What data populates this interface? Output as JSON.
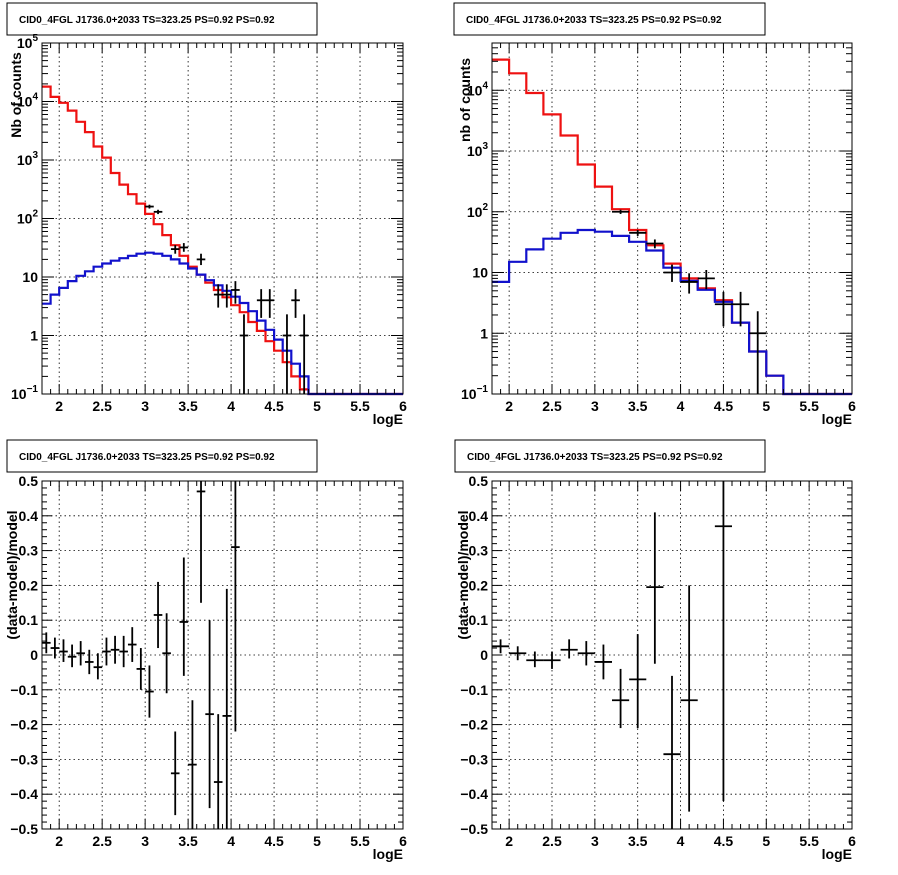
{
  "chart_data": [
    {
      "id": "p1",
      "type": "line",
      "title": "CID0_4FGL J1736.0+2033 TS=323.25 PS=0.92 PS=0.92",
      "xlabel": "logE",
      "ylabel": "Nb of counts",
      "xlim": [
        1.8,
        6.0
      ],
      "ylim": [
        0.1,
        100000
      ],
      "yscale": "log",
      "grid": true,
      "xticks": [
        "2",
        "2.5",
        "3",
        "3.5",
        "4",
        "4.5",
        "5",
        "5.5",
        "6"
      ],
      "yticks": [
        {
          "value": 0.1,
          "label": "10",
          "exp": "−1"
        },
        {
          "value": 1,
          "label": "1",
          "exp": ""
        },
        {
          "value": 10,
          "label": "10",
          "exp": ""
        },
        {
          "value": 100,
          "label": "10",
          "exp": "2"
        },
        {
          "value": 1000,
          "label": "10",
          "exp": "3"
        },
        {
          "value": 10000,
          "label": "10",
          "exp": "4"
        },
        {
          "value": 100000,
          "label": "10",
          "exp": "5"
        }
      ],
      "bin_edges": [
        1.8,
        1.9,
        2.0,
        2.1,
        2.2,
        2.3,
        2.4,
        2.5,
        2.6,
        2.7,
        2.8,
        2.9,
        3.0,
        3.1,
        3.2,
        3.3,
        3.4,
        3.5,
        3.6,
        3.7,
        3.8,
        3.9,
        4.0,
        4.1,
        4.2,
        4.3,
        4.4,
        4.5,
        4.6,
        4.7,
        4.8,
        4.9,
        5.0,
        5.1,
        5.2,
        5.3,
        5.4,
        5.5,
        5.6,
        5.7,
        5.8,
        5.9,
        6.0
      ],
      "series": [
        {
          "role": "total model",
          "color": "#ee1111",
          "values": [
            18000,
            12000,
            9500,
            7000,
            4500,
            3000,
            1700,
            1100,
            600,
            380,
            260,
            180,
            120,
            80,
            52,
            35,
            23,
            15,
            11,
            8,
            6,
            4.5,
            3.3,
            2.5,
            1.7,
            1.2,
            0.8,
            0.55,
            0.35,
            0.2,
            0.12,
            0.05,
            0.02,
            0.1,
            0.1,
            0.1,
            0.1,
            0.1,
            0.1,
            0.1,
            0.1,
            0.1
          ]
        },
        {
          "role": "source model",
          "color": "#1111cc",
          "values": [
            3.5,
            5,
            6.5,
            8.5,
            10.5,
            12.5,
            15,
            17,
            19,
            21,
            23,
            25,
            26,
            25,
            23,
            20,
            17,
            14,
            11,
            8.8,
            7.2,
            5.8,
            4.6,
            3.6,
            2.6,
            1.8,
            1.25,
            0.85,
            0.55,
            0.33,
            0.2,
            0.1,
            0.1,
            0.1,
            0.1,
            0.1,
            0.1,
            0.1,
            0.1,
            0.1,
            0.1,
            0.1
          ]
        }
      ],
      "points": [
        {
          "x": 3.05,
          "y": 160,
          "xerr": 0.05,
          "ylo": 148,
          "yhi": 172
        },
        {
          "x": 3.15,
          "y": 130,
          "xerr": 0.05,
          "ylo": 119,
          "yhi": 141
        },
        {
          "x": 3.35,
          "y": 30,
          "xerr": 0.05,
          "ylo": 25,
          "yhi": 35
        },
        {
          "x": 3.45,
          "y": 32,
          "xerr": 0.05,
          "ylo": 27,
          "yhi": 38
        },
        {
          "x": 3.65,
          "y": 20,
          "xerr": 0.05,
          "ylo": 16,
          "yhi": 25
        },
        {
          "x": 3.85,
          "y": 5,
          "xerr": 0.05,
          "ylo": 3,
          "yhi": 7.5
        },
        {
          "x": 3.95,
          "y": 5,
          "xerr": 0.05,
          "ylo": 3,
          "yhi": 7.5
        },
        {
          "x": 4.05,
          "y": 6,
          "xerr": 0.05,
          "ylo": 3.5,
          "yhi": 8.5
        },
        {
          "x": 4.15,
          "y": 1,
          "xerr": 0.05,
          "ylo": 0.1,
          "yhi": 2.3
        },
        {
          "x": 4.35,
          "y": 4,
          "xerr": 0.05,
          "ylo": 2,
          "yhi": 6.2
        },
        {
          "x": 4.45,
          "y": 4,
          "xerr": 0.05,
          "ylo": 2,
          "yhi": 6.2
        },
        {
          "x": 4.65,
          "y": 1,
          "xerr": 0.05,
          "ylo": 0.1,
          "yhi": 2.3
        },
        {
          "x": 4.75,
          "y": 4,
          "xerr": 0.05,
          "ylo": 2,
          "yhi": 6.2
        },
        {
          "x": 4.85,
          "y": 1,
          "xerr": 0.05,
          "ylo": 0.1,
          "yhi": 2.3
        }
      ]
    },
    {
      "id": "p2",
      "type": "line",
      "title": "CID0_4FGL J1736.0+2033 TS=323.25 PS=0.92 PS=0.92",
      "xlabel": "logE",
      "ylabel": "nb of counts",
      "xlim": [
        1.8,
        6.0
      ],
      "ylim": [
        0.1,
        60000
      ],
      "yscale": "log",
      "grid": true,
      "xticks": [
        "2",
        "2.5",
        "3",
        "3.5",
        "4",
        "4.5",
        "5",
        "5.5",
        "6"
      ],
      "yticks": [
        {
          "value": 0.1,
          "label": "10",
          "exp": "−1"
        },
        {
          "value": 1,
          "label": "1",
          "exp": ""
        },
        {
          "value": 10,
          "label": "10",
          "exp": ""
        },
        {
          "value": 100,
          "label": "10",
          "exp": "2"
        },
        {
          "value": 1000,
          "label": "10",
          "exp": "3"
        },
        {
          "value": 10000,
          "label": "10",
          "exp": "4"
        }
      ],
      "bin_edges": [
        1.8,
        2.0,
        2.2,
        2.4,
        2.6,
        2.8,
        3.0,
        3.2,
        3.4,
        3.6,
        3.8,
        4.0,
        4.2,
        4.4,
        4.6,
        4.8,
        5.0,
        5.2,
        5.4,
        5.6,
        5.8,
        6.0
      ],
      "series": [
        {
          "role": "total model",
          "color": "#ee1111",
          "values": [
            32000,
            19000,
            9000,
            4000,
            1800,
            600,
            260,
            110,
            50,
            28,
            14,
            8,
            5.5,
            3.5,
            1.5,
            0.5,
            0.2,
            0.1,
            0.1,
            0.1,
            0.1
          ]
        },
        {
          "role": "source model",
          "color": "#1111cc",
          "values": [
            7,
            15,
            24,
            36,
            45,
            50,
            47,
            40,
            32,
            23,
            12,
            7.3,
            5.2,
            3.3,
            1.5,
            0.5,
            0.2,
            0.1,
            0.1,
            0.1,
            0.1
          ]
        }
      ],
      "points": [
        {
          "x": 3.3,
          "y": 100,
          "xerr": 0.1,
          "ylo": 92,
          "yhi": 108
        },
        {
          "x": 3.5,
          "y": 45,
          "xerr": 0.1,
          "ylo": 40,
          "yhi": 50
        },
        {
          "x": 3.7,
          "y": 30,
          "xerr": 0.1,
          "ylo": 25,
          "yhi": 35
        },
        {
          "x": 3.9,
          "y": 10,
          "xerr": 0.1,
          "ylo": 7,
          "yhi": 13.5
        },
        {
          "x": 4.1,
          "y": 7,
          "xerr": 0.1,
          "ylo": 4.5,
          "yhi": 9.7
        },
        {
          "x": 4.3,
          "y": 8,
          "xerr": 0.1,
          "ylo": 5.3,
          "yhi": 11
        },
        {
          "x": 4.5,
          "y": 3,
          "xerr": 0.1,
          "ylo": 1.3,
          "yhi": 4.8
        },
        {
          "x": 4.7,
          "y": 3,
          "xerr": 0.1,
          "ylo": 1.3,
          "yhi": 4.8
        },
        {
          "x": 4.9,
          "y": 1,
          "xerr": 0.1,
          "ylo": 0.1,
          "yhi": 2.3
        }
      ]
    },
    {
      "id": "p3",
      "type": "scatter",
      "title": "CID0_4FGL J1736.0+2033 TS=323.25 PS=0.92 PS=0.92",
      "xlabel": "logE",
      "ylabel": "(data-model)/model",
      "xlim": [
        1.8,
        6.0
      ],
      "ylim": [
        -0.5,
        0.5
      ],
      "yscale": "linear",
      "grid": true,
      "xticks": [
        "2",
        "2.5",
        "3",
        "3.5",
        "4",
        "4.5",
        "5",
        "5.5",
        "6"
      ],
      "yticks": [
        {
          "value": -0.5,
          "label": "−0.5",
          "exp": ""
        },
        {
          "value": -0.4,
          "label": "−0.4",
          "exp": ""
        },
        {
          "value": -0.3,
          "label": "−0.3",
          "exp": ""
        },
        {
          "value": -0.2,
          "label": "−0.2",
          "exp": ""
        },
        {
          "value": -0.1,
          "label": "−0.1",
          "exp": ""
        },
        {
          "value": 0,
          "label": "0",
          "exp": ""
        },
        {
          "value": 0.1,
          "label": "0.1",
          "exp": ""
        },
        {
          "value": 0.2,
          "label": "0.2",
          "exp": ""
        },
        {
          "value": 0.3,
          "label": "0.3",
          "exp": ""
        },
        {
          "value": 0.4,
          "label": "0.4",
          "exp": ""
        },
        {
          "value": 0.5,
          "label": "0.5",
          "exp": ""
        }
      ],
      "points": [
        {
          "x": 1.85,
          "y": 0.035,
          "xerr": 0.05,
          "ylo": 0.005,
          "yhi": 0.065
        },
        {
          "x": 1.95,
          "y": 0.02,
          "xerr": 0.05,
          "ylo": -0.01,
          "yhi": 0.05
        },
        {
          "x": 2.05,
          "y": 0.01,
          "xerr": 0.05,
          "ylo": -0.02,
          "yhi": 0.045
        },
        {
          "x": 2.15,
          "y": -0.005,
          "xerr": 0.05,
          "ylo": -0.035,
          "yhi": 0.03
        },
        {
          "x": 2.25,
          "y": 0.005,
          "xerr": 0.05,
          "ylo": -0.03,
          "yhi": 0.04
        },
        {
          "x": 2.35,
          "y": -0.02,
          "xerr": 0.05,
          "ylo": -0.055,
          "yhi": 0.015
        },
        {
          "x": 2.45,
          "y": -0.035,
          "xerr": 0.05,
          "ylo": -0.07,
          "yhi": 0.005
        },
        {
          "x": 2.55,
          "y": 0.01,
          "xerr": 0.05,
          "ylo": -0.03,
          "yhi": 0.05
        },
        {
          "x": 2.65,
          "y": 0.015,
          "xerr": 0.05,
          "ylo": -0.025,
          "yhi": 0.055
        },
        {
          "x": 2.75,
          "y": 0.01,
          "xerr": 0.05,
          "ylo": -0.035,
          "yhi": 0.055
        },
        {
          "x": 2.85,
          "y": 0.03,
          "xerr": 0.05,
          "ylo": -0.02,
          "yhi": 0.08
        },
        {
          "x": 2.95,
          "y": -0.04,
          "xerr": 0.05,
          "ylo": -0.1,
          "yhi": 0.02
        },
        {
          "x": 3.05,
          "y": -0.105,
          "xerr": 0.05,
          "ylo": -0.18,
          "yhi": -0.03
        },
        {
          "x": 3.15,
          "y": 0.115,
          "xerr": 0.05,
          "ylo": 0.02,
          "yhi": 0.21
        },
        {
          "x": 3.25,
          "y": 0.005,
          "xerr": 0.05,
          "ylo": -0.11,
          "yhi": 0.12
        },
        {
          "x": 3.35,
          "y": -0.34,
          "xerr": 0.05,
          "ylo": -0.46,
          "yhi": -0.22
        },
        {
          "x": 3.45,
          "y": 0.095,
          "xerr": 0.05,
          "ylo": -0.06,
          "yhi": 0.28
        },
        {
          "x": 3.55,
          "y": -0.315,
          "xerr": 0.05,
          "ylo": -0.5,
          "yhi": -0.13
        },
        {
          "x": 3.65,
          "y": 0.47,
          "xerr": 0.05,
          "ylo": 0.15,
          "yhi": 0.5
        },
        {
          "x": 3.75,
          "y": -0.17,
          "xerr": 0.05,
          "ylo": -0.44,
          "yhi": 0.1
        },
        {
          "x": 3.85,
          "y": -0.365,
          "xerr": 0.05,
          "ylo": -0.5,
          "yhi": -0.17
        },
        {
          "x": 3.95,
          "y": -0.175,
          "xerr": 0.05,
          "ylo": -0.5,
          "yhi": 0.19
        },
        {
          "x": 4.05,
          "y": 0.31,
          "xerr": 0.05,
          "ylo": -0.22,
          "yhi": 0.5
        }
      ]
    },
    {
      "id": "p4",
      "type": "scatter",
      "title": "CID0_4FGL J1736.0+2033 TS=323.25 PS=0.92 PS=0.92",
      "xlabel": "logE",
      "ylabel": "(data-model)/model",
      "xlim": [
        1.8,
        6.0
      ],
      "ylim": [
        -0.5,
        0.5
      ],
      "yscale": "linear",
      "grid": true,
      "xticks": [
        "2",
        "2.5",
        "3",
        "3.5",
        "4",
        "4.5",
        "5",
        "5.5",
        "6"
      ],
      "yticks": [
        {
          "value": -0.5,
          "label": "−0.5",
          "exp": ""
        },
        {
          "value": -0.4,
          "label": "−0.4",
          "exp": ""
        },
        {
          "value": -0.3,
          "label": "−0.3",
          "exp": ""
        },
        {
          "value": -0.2,
          "label": "−0.2",
          "exp": ""
        },
        {
          "value": -0.1,
          "label": "−0.1",
          "exp": ""
        },
        {
          "value": 0,
          "label": "0",
          "exp": ""
        },
        {
          "value": 0.1,
          "label": "0.1",
          "exp": ""
        },
        {
          "value": 0.2,
          "label": "0.2",
          "exp": ""
        },
        {
          "value": 0.3,
          "label": "0.3",
          "exp": ""
        },
        {
          "value": 0.4,
          "label": "0.4",
          "exp": ""
        },
        {
          "value": 0.5,
          "label": "0.5",
          "exp": ""
        }
      ],
      "points": [
        {
          "x": 1.9,
          "y": 0.025,
          "xerr": 0.1,
          "ylo": 0.005,
          "yhi": 0.045
        },
        {
          "x": 2.1,
          "y": 0.005,
          "xerr": 0.1,
          "ylo": -0.015,
          "yhi": 0.025
        },
        {
          "x": 2.3,
          "y": -0.015,
          "xerr": 0.1,
          "ylo": -0.035,
          "yhi": 0.01
        },
        {
          "x": 2.5,
          "y": -0.015,
          "xerr": 0.1,
          "ylo": -0.04,
          "yhi": 0.01
        },
        {
          "x": 2.7,
          "y": 0.015,
          "xerr": 0.1,
          "ylo": -0.01,
          "yhi": 0.045
        },
        {
          "x": 2.9,
          "y": 0.005,
          "xerr": 0.1,
          "ylo": -0.03,
          "yhi": 0.04
        },
        {
          "x": 3.1,
          "y": -0.02,
          "xerr": 0.1,
          "ylo": -0.07,
          "yhi": 0.03
        },
        {
          "x": 3.3,
          "y": -0.13,
          "xerr": 0.1,
          "ylo": -0.21,
          "yhi": -0.04
        },
        {
          "x": 3.5,
          "y": -0.07,
          "xerr": 0.1,
          "ylo": -0.21,
          "yhi": 0.06
        },
        {
          "x": 3.7,
          "y": 0.195,
          "xerr": 0.1,
          "ylo": -0.025,
          "yhi": 0.41
        },
        {
          "x": 3.9,
          "y": -0.285,
          "xerr": 0.1,
          "ylo": -0.5,
          "yhi": -0.06
        },
        {
          "x": 4.1,
          "y": -0.13,
          "xerr": 0.1,
          "ylo": -0.45,
          "yhi": 0.2
        },
        {
          "x": 4.5,
          "y": 0.37,
          "xerr": 0.1,
          "ylo": -0.42,
          "yhi": 0.5
        }
      ]
    }
  ]
}
